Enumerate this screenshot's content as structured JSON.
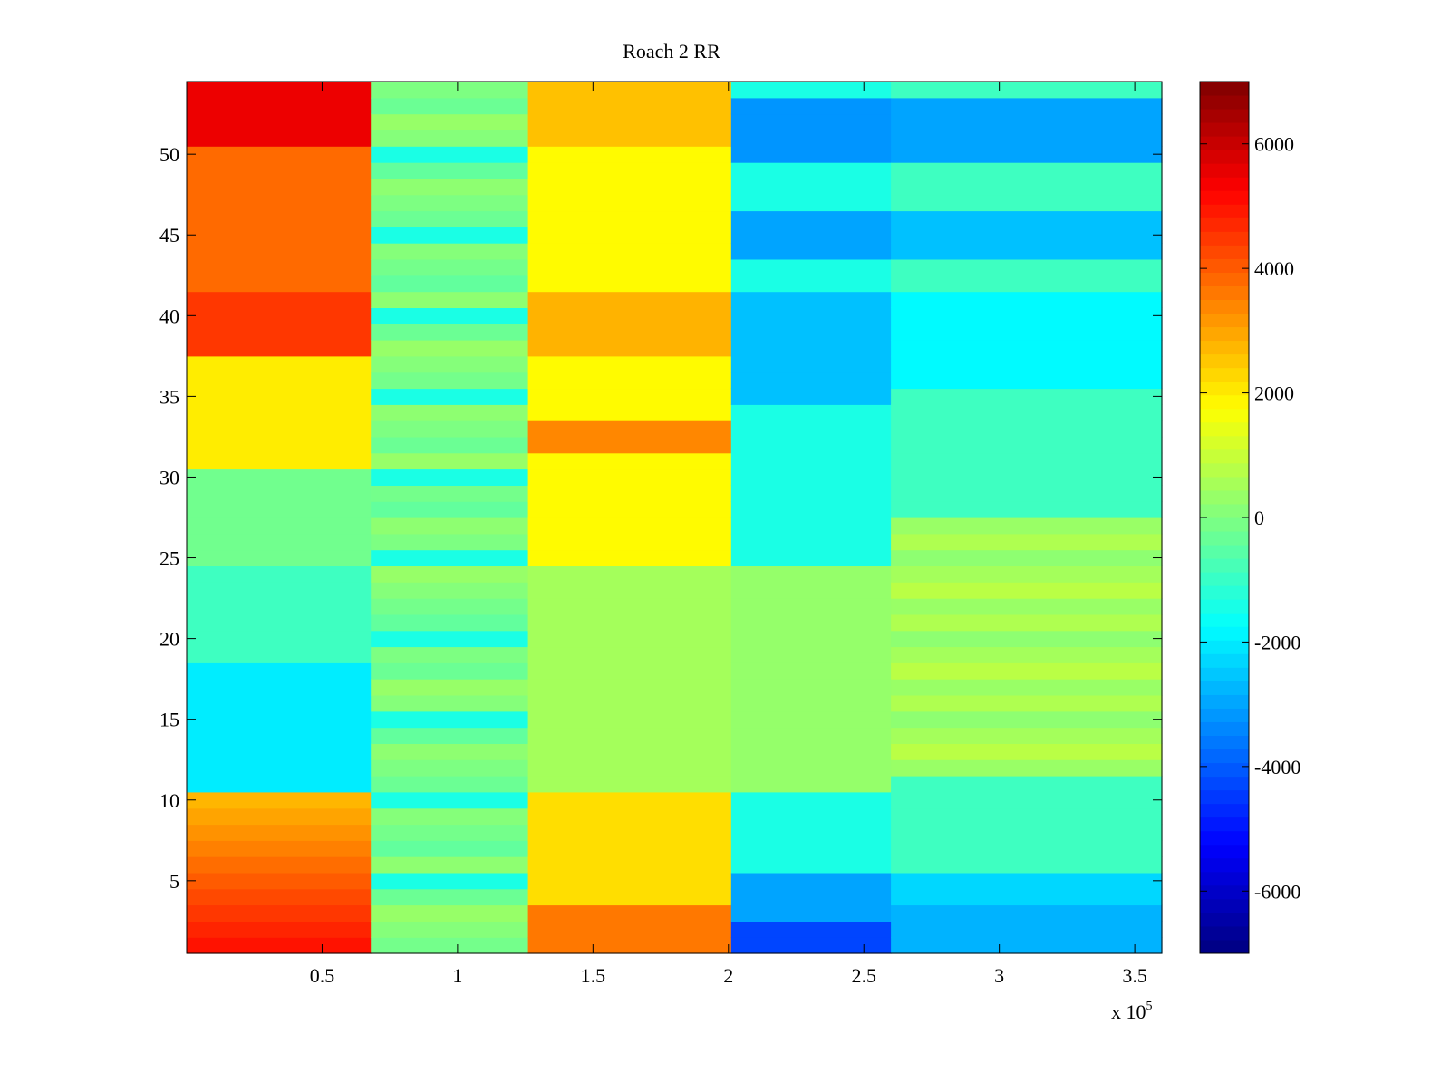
{
  "chart_data": {
    "type": "heatmap",
    "title": "Roach 2 RR",
    "xlabel": "",
    "ylabel": "",
    "x_exponent_label": "x 10",
    "x_exponent_power": "5",
    "xlim": [
      0,
      3.6
    ],
    "ylim": [
      0.5,
      54.5
    ],
    "rows": 54,
    "xticks": [
      0.5,
      1,
      1.5,
      2,
      2.5,
      3,
      3.5
    ],
    "xtick_labels": [
      "0.5",
      "1",
      "1.5",
      "2",
      "2.5",
      "3",
      "3.5"
    ],
    "yticks": [
      5,
      10,
      15,
      20,
      25,
      30,
      35,
      40,
      45,
      50
    ],
    "ytick_labels": [
      "5",
      "10",
      "15",
      "20",
      "25",
      "30",
      "35",
      "40",
      "45",
      "50"
    ],
    "colorbar": {
      "colormap": "jet",
      "clim": [
        -7000,
        7000
      ],
      "ticks": [
        -6000,
        -4000,
        -2000,
        0,
        2000,
        4000,
        6000
      ],
      "tick_labels": [
        "-6000",
        "-4000",
        "-2000",
        "0",
        "2000",
        "4000",
        "6000"
      ]
    },
    "segments": [
      {
        "x_start": 0,
        "x_end": 0.68,
        "note": "rows 31-54 and 1-10 high (2000 to 7000); rows 11-18 low (about -2000)"
      },
      {
        "x_start": 0.68,
        "x_end": 1.26,
        "note": "mostly -1500 to 500"
      },
      {
        "x_start": 1.26,
        "x_end": 2.01,
        "note": "rows 1-10 and 25-54 elevated (1500 to 5000); middle rows about 500"
      },
      {
        "x_start": 2.01,
        "x_end": 2.6,
        "note": "upper and lower rows strongly negative (-2500 to -4500)"
      },
      {
        "x_start": 2.6,
        "x_end": 3.6,
        "note": "similar to previous segment with slightly more positive mid rows"
      }
    ],
    "grid": false
  }
}
